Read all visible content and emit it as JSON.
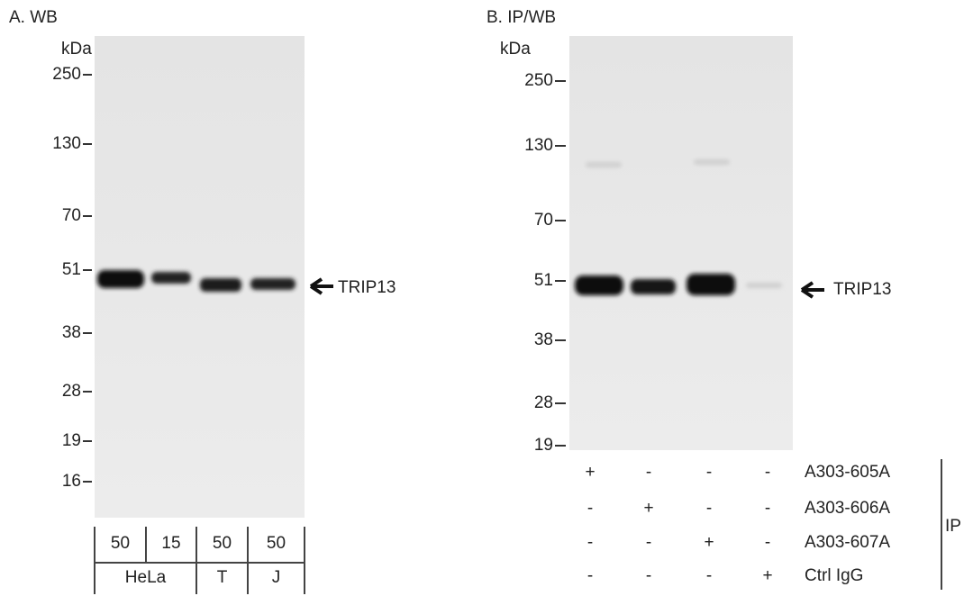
{
  "panel_a": {
    "title": "A. WB",
    "unit": "kDa",
    "markers": [
      "250",
      "130",
      "70",
      "51",
      "38",
      "28",
      "19",
      "16"
    ],
    "band_label": "TRIP13",
    "amounts": [
      "50",
      "15",
      "50",
      "50"
    ],
    "cell_lines": [
      "HeLa",
      "T",
      "J"
    ]
  },
  "panel_b": {
    "title": "B. IP/WB",
    "unit": "kDa",
    "markers": [
      "250",
      "130",
      "70",
      "51",
      "38",
      "28",
      "19"
    ],
    "band_label": "TRIP13",
    "ip_rows": [
      {
        "label": "A303-605A",
        "marks": [
          "+",
          "-",
          "-",
          "-"
        ]
      },
      {
        "label": "A303-606A",
        "marks": [
          "-",
          "+",
          "-",
          "-"
        ]
      },
      {
        "label": "A303-607A",
        "marks": [
          "-",
          "-",
          "+",
          "-"
        ]
      },
      {
        "label": "Ctrl IgG",
        "marks": [
          "-",
          "-",
          "-",
          "+"
        ]
      }
    ],
    "group_label": "IP"
  }
}
